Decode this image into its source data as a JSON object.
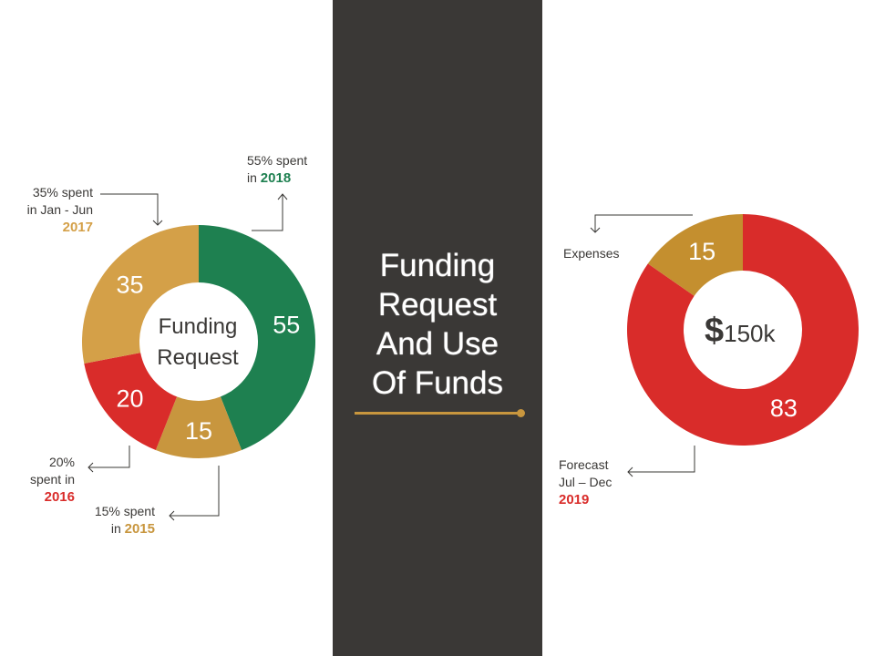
{
  "title": {
    "lines": [
      "Funding",
      "Request",
      "And Use",
      "Of Funds"
    ]
  },
  "colors": {
    "panel": "#3a3836",
    "accent": "#c8963e",
    "gold": "#d4a048",
    "dark_gold": "#c48f2f",
    "green": "#1e8050",
    "red": "#d92c2a",
    "text": "#3a3836"
  },
  "chart_data": [
    {
      "type": "pie",
      "donut": true,
      "center_label": [
        "Funding",
        "Request"
      ],
      "slices": [
        {
          "label": "55",
          "value": 55,
          "color": "#1e8050"
        },
        {
          "label": "15",
          "value": 15,
          "color": "#c8963e"
        },
        {
          "label": "20",
          "value": 20,
          "color": "#d92c2a"
        },
        {
          "label": "35",
          "value": 35,
          "color": "#d4a048"
        }
      ],
      "annotations": [
        {
          "text": "55% spent",
          "text2": "in ",
          "year": "2018",
          "year_color": "#1e8050"
        },
        {
          "text": "35% spent",
          "text2": "in Jan - Jun",
          "year": "2017",
          "year_color": "#d4a048"
        },
        {
          "text": "20%",
          "text2": "spent in",
          "year": "2016",
          "year_color": "#d92c2a"
        },
        {
          "text": "15% spent",
          "text2": "in ",
          "year": "2015",
          "year_color": "#c8963e"
        }
      ]
    },
    {
      "type": "pie",
      "donut": true,
      "center_label": {
        "symbol": "$",
        "amount": "150k"
      },
      "slices": [
        {
          "label": "83",
          "value": 83,
          "color": "#d92c2a"
        },
        {
          "label": "15",
          "value": 15,
          "color": "#c48f2f"
        }
      ],
      "annotations": [
        {
          "text": "Expenses"
        },
        {
          "text": "Forecast",
          "text2": "Jul – Dec",
          "year": "2019",
          "year_color": "#d92c2a"
        }
      ]
    }
  ]
}
